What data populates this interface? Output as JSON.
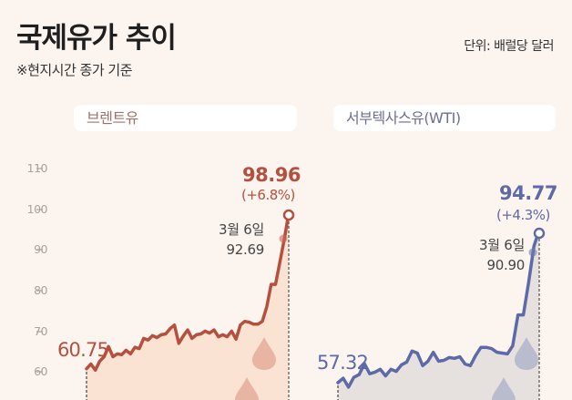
{
  "header": {
    "title": "국제유가 추이",
    "subtitle": "※현지시간 종가 기준",
    "unit": "단위: 배럴당 달러"
  },
  "colors": {
    "background": "#fcf4ef",
    "brent_line": "#b5503f",
    "brent_fill": "#fae3d3",
    "brent_drop": "#e8b4a4",
    "wti_line": "#5e6aa8",
    "wti_fill": "#e6e1df",
    "wti_drop": "#b9bccc"
  },
  "y_axis": {
    "ticks": [
      "110",
      "100",
      "90",
      "80",
      "70",
      "60"
    ]
  },
  "brent": {
    "label": "브렌트유",
    "start_value": "60.75",
    "end_value": "98.96",
    "end_change": "(+6.8%)",
    "annotation_date": "3월 6일",
    "annotation_value": "92.69"
  },
  "wti": {
    "label": "서부텍사스유(WTI)",
    "start_value": "57.32",
    "end_value": "94.77",
    "end_change": "(+4.3%)",
    "annotation_date": "3월 6일",
    "annotation_value": "90.90"
  },
  "chart_data": [
    {
      "type": "line",
      "title": "브렌트유",
      "ylabel": "배럴당 달러",
      "ylim": [
        55,
        112
      ],
      "yticks": [
        60,
        70,
        80,
        90,
        100,
        110
      ],
      "grid": false,
      "annotations": [
        {
          "label": "60.75",
          "point": "start"
        },
        {
          "label": "3월 6일 92.69",
          "value": 92.69
        },
        {
          "label": "98.96 (+6.8%)",
          "point": "end"
        }
      ],
      "values": [
        60.75,
        61.9,
        60.4,
        62.6,
        63.7,
        66.2,
        63.7,
        64.4,
        64.2,
        65.3,
        64.4,
        66.0,
        65.7,
        68.2,
        67.8,
        68.9,
        68.4,
        69.1,
        69.3,
        70.6,
        71.5,
        67.0,
        68.8,
        70.3,
        68.2,
        69.1,
        69.3,
        70.0,
        69.5,
        70.3,
        68.6,
        69.1,
        68.6,
        70.0,
        68.0,
        71.5,
        72.4,
        72.2,
        71.7,
        71.7,
        72.4,
        76.0,
        81.5,
        81.5,
        87.0,
        92.69,
        98.96
      ]
    },
    {
      "type": "line",
      "title": "서부텍사스유(WTI)",
      "ylabel": "배럴당 달러",
      "ylim": [
        55,
        112
      ],
      "yticks": [
        60,
        70,
        80,
        90,
        100,
        110
      ],
      "grid": false,
      "annotations": [
        {
          "label": "57.32",
          "point": "start"
        },
        {
          "label": "3월 6일 90.90",
          "value": 90.9
        },
        {
          "label": "94.77 (+4.3%)",
          "point": "end"
        }
      ],
      "values": [
        57.32,
        58.4,
        56.2,
        58.6,
        59.3,
        62.0,
        59.5,
        59.9,
        60.6,
        59.0,
        60.6,
        60.1,
        61.7,
        62.4,
        65.1,
        64.6,
        61.5,
        62.6,
        64.8,
        62.6,
        62.8,
        63.5,
        63.3,
        63.7,
        61.9,
        61.5,
        64.0,
        66.0,
        66.0,
        65.7,
        64.8,
        64.6,
        64.4,
        66.4,
        74.0,
        74.0,
        82.0,
        90.9,
        94.77
      ]
    }
  ]
}
